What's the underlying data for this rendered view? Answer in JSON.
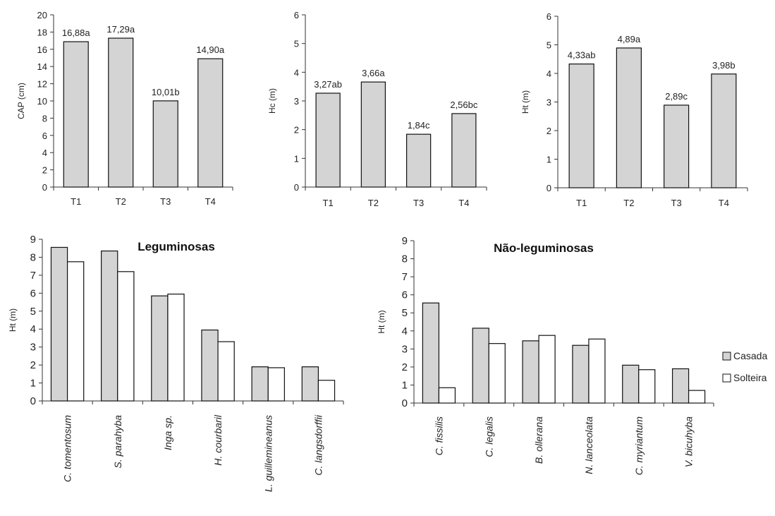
{
  "colors": {
    "filled": "#d4d4d4",
    "hollow": "#ffffff",
    "stroke": "#111111"
  },
  "chart_data": [
    {
      "type": "bar",
      "title": "",
      "xlabel": "",
      "ylabel": "CAP (cm)",
      "categories": [
        "T1",
        "T2",
        "T3",
        "T4"
      ],
      "values": [
        16.88,
        17.29,
        10.01,
        14.9
      ],
      "data_labels": [
        "16,88a",
        "17,29a",
        "10,01b",
        "14,90a"
      ],
      "ylim": [
        0,
        20
      ],
      "yticks": [
        0,
        2,
        4,
        6,
        8,
        10,
        12,
        14,
        16,
        18,
        20
      ],
      "grid": false
    },
    {
      "type": "bar",
      "title": "",
      "xlabel": "",
      "ylabel": "Hc (m)",
      "categories": [
        "T1",
        "T2",
        "T3",
        "T4"
      ],
      "values": [
        3.27,
        3.66,
        1.84,
        2.56
      ],
      "data_labels": [
        "3,27ab",
        "3,66a",
        "1,84c",
        "2,56bc"
      ],
      "ylim": [
        0,
        6
      ],
      "yticks": [
        0,
        1,
        2,
        3,
        4,
        5,
        6
      ],
      "grid": false
    },
    {
      "type": "bar",
      "title": "",
      "xlabel": "",
      "ylabel": "Ht (m)",
      "categories": [
        "T1",
        "T2",
        "T3",
        "T4"
      ],
      "values": [
        4.33,
        4.89,
        2.89,
        3.98
      ],
      "data_labels": [
        "4,33ab",
        "4,89a",
        "2,89c",
        "3,98b"
      ],
      "ylim": [
        0,
        6
      ],
      "yticks": [
        0,
        1,
        2,
        3,
        4,
        5,
        6
      ],
      "grid": false
    },
    {
      "type": "bar",
      "title": "Leguminosas",
      "xlabel": "",
      "ylabel": "Ht (m)",
      "categories": [
        "C. tomentosum",
        "S. parahyba",
        "Inga sp.",
        "H. courbaril",
        "L. guillemineanus",
        "C. langsdorffii"
      ],
      "series": [
        {
          "name": "Casada",
          "values": [
            8.55,
            8.35,
            5.85,
            3.95,
            1.9,
            1.9
          ]
        },
        {
          "name": "Solteira",
          "values": [
            7.75,
            7.2,
            5.95,
            3.3,
            1.85,
            1.15
          ]
        }
      ],
      "ylim": [
        0,
        9
      ],
      "yticks": [
        0,
        1,
        2,
        3,
        4,
        5,
        6,
        7,
        8,
        9
      ],
      "grid": false
    },
    {
      "type": "bar",
      "title": "Não-leguminosas",
      "xlabel": "",
      "ylabel": "Ht (m)",
      "categories": [
        "C. fissilis",
        "C. legalis",
        "B. ollerana",
        "N. lanceolata",
        "C. myriantum",
        "V. bicuhyba"
      ],
      "series": [
        {
          "name": "Casada",
          "values": [
            5.55,
            4.15,
            3.45,
            3.2,
            2.1,
            1.9
          ]
        },
        {
          "name": "Solteira",
          "values": [
            0.85,
            3.3,
            3.75,
            3.55,
            1.85,
            0.7
          ]
        }
      ],
      "ylim": [
        0,
        9
      ],
      "yticks": [
        0,
        1,
        2,
        3,
        4,
        5,
        6,
        7,
        8,
        9
      ],
      "grid": false,
      "legend": "right"
    }
  ],
  "legend": {
    "items": [
      "Casada",
      "Solteira"
    ]
  }
}
